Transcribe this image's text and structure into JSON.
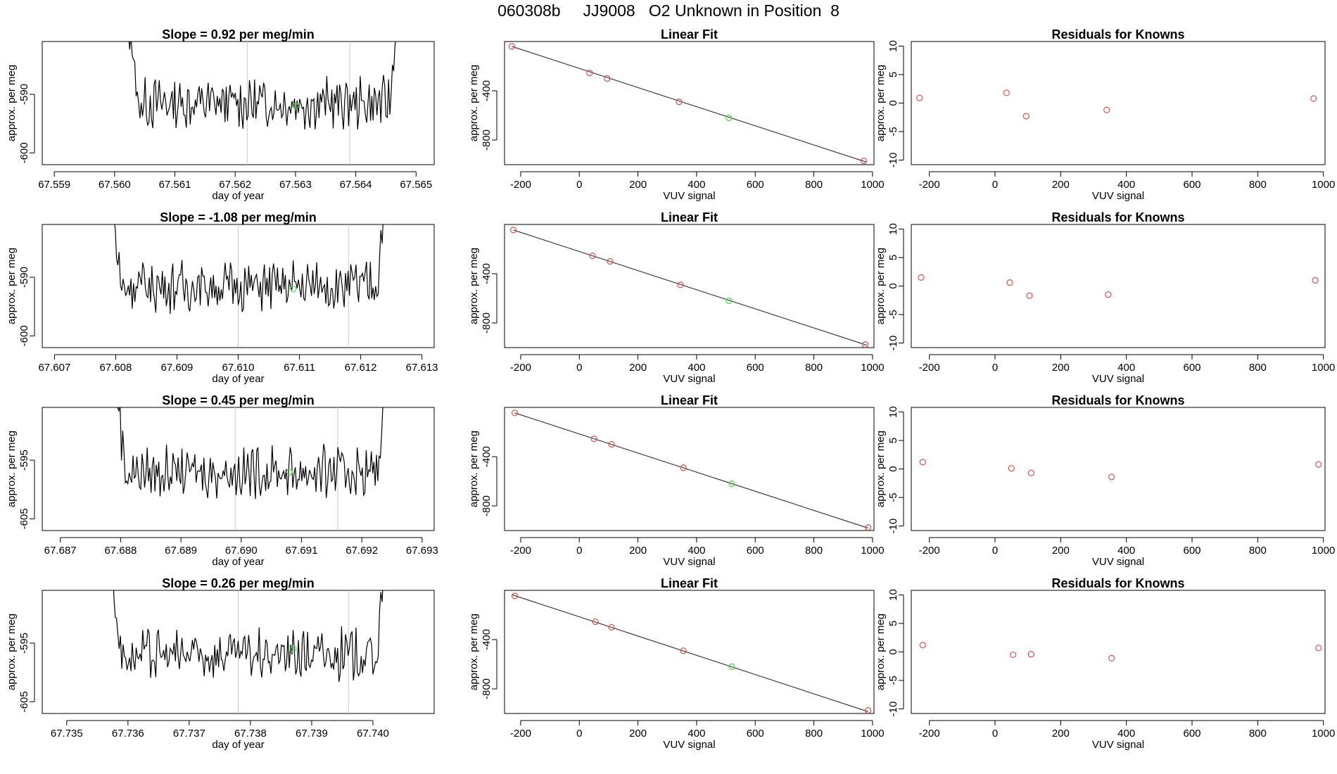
{
  "page_title": "060308b     JJ9008   O2 Unknown in Position  8",
  "colors": {
    "trace": "#000000",
    "marker_known": "#d9534f",
    "marker_unknown": "#4cd94c",
    "window_line": "#c8c8c8",
    "fit_line": "#404040",
    "frame": "#000000"
  },
  "rows": [
    {
      "trace_panel": {
        "title": "Slope =  0.92  per meg/min",
        "xlabel": "day of year",
        "ylabel": "approx. per meg",
        "x_ticks": [
          "67.559",
          "67.560",
          "67.561",
          "67.562",
          "67.563",
          "67.564",
          "67.565"
        ],
        "x_tick_values": [
          67.559,
          67.56,
          67.561,
          67.562,
          67.563,
          67.564,
          67.565
        ],
        "xlim": [
          67.5588,
          67.5653
        ],
        "y_ticks": [
          "-590",
          "-600"
        ],
        "y_tick_values": [
          -590,
          -600
        ],
        "ylim": [
          -602,
          -581
        ],
        "window_start": 67.5622,
        "window_end": 67.5639,
        "start": 67.5601,
        "end": 67.5648,
        "level": -591.5,
        "noise": 3.5,
        "highlight": {
          "x": 67.563,
          "y": -592
        }
      },
      "fit_panel": {
        "title": "Linear Fit",
        "xlabel": "VUV signal",
        "ylabel": "approx. per meg",
        "x_ticks": [
          "-200",
          "0",
          "200",
          "400",
          "600",
          "800",
          "1000"
        ],
        "x_tick_values": [
          -200,
          0,
          200,
          400,
          600,
          800,
          1000
        ],
        "xlim": [
          -255,
          1005
        ],
        "y_ticks": [
          "-400",
          "-800"
        ],
        "y_tick_values": [
          -400,
          -800
        ],
        "ylim": [
          -1000,
          0
        ],
        "known_points": [
          [
            -230,
            -40
          ],
          [
            35,
            -255
          ],
          [
            95,
            -300
          ],
          [
            340,
            -490
          ],
          [
            970,
            -970
          ]
        ],
        "unknown_point": [
          510,
          -620
        ],
        "fit_line": [
          [
            -230,
            -40
          ],
          [
            980,
            -980
          ]
        ]
      },
      "resid_panel": {
        "title": "Residuals for Knowns",
        "xlabel": "VUV signal",
        "ylabel": "approx. per meg",
        "x_ticks": [
          "-200",
          "0",
          "200",
          "400",
          "600",
          "800",
          "1000"
        ],
        "x_tick_values": [
          -200,
          0,
          200,
          400,
          600,
          800,
          1000
        ],
        "xlim": [
          -255,
          1005
        ],
        "y_ticks": [
          "10",
          "5",
          "0",
          "-5",
          "-10"
        ],
        "y_tick_values": [
          10,
          5,
          0,
          -5,
          -10
        ],
        "ylim": [
          -10.8,
          10.8
        ],
        "points": [
          [
            -230,
            0.9
          ],
          [
            35,
            1.8
          ],
          [
            95,
            -2.3
          ],
          [
            340,
            -1.2
          ],
          [
            970,
            0.8
          ]
        ]
      }
    },
    {
      "trace_panel": {
        "title": "Slope =  -1.08  per meg/min",
        "xlabel": "day of year",
        "ylabel": "approx. per meg",
        "x_ticks": [
          "67.607",
          "67.608",
          "67.609",
          "67.610",
          "67.611",
          "67.612",
          "67.613"
        ],
        "x_tick_values": [
          67.607,
          67.608,
          67.609,
          67.61,
          67.611,
          67.612,
          67.613
        ],
        "xlim": [
          67.6068,
          67.6132
        ],
        "y_ticks": [
          "-590",
          "-600"
        ],
        "y_tick_values": [
          -590,
          -600
        ],
        "ylim": [
          -602,
          -581
        ],
        "window_start": 67.61,
        "window_end": 67.6118,
        "start": 67.6078,
        "end": 67.6125,
        "level": -591.5,
        "noise": 3.5,
        "highlight": {
          "x": 67.6109,
          "y": -592
        }
      },
      "fit_panel": {
        "title": "Linear Fit",
        "xlabel": "VUV signal",
        "ylabel": "approx. per meg",
        "x_ticks": [
          "-200",
          "0",
          "200",
          "400",
          "600",
          "800",
          "1000"
        ],
        "x_tick_values": [
          -200,
          0,
          200,
          400,
          600,
          800,
          1000
        ],
        "xlim": [
          -255,
          1005
        ],
        "y_ticks": [
          "-400",
          "-800"
        ],
        "y_tick_values": [
          -400,
          -800
        ],
        "ylim": [
          -1000,
          0
        ],
        "known_points": [
          [
            -225,
            -45
          ],
          [
            45,
            -255
          ],
          [
            105,
            -300
          ],
          [
            345,
            -490
          ],
          [
            975,
            -975
          ]
        ],
        "unknown_point": [
          510,
          -620
        ],
        "fit_line": [
          [
            -225,
            -45
          ],
          [
            980,
            -980
          ]
        ]
      },
      "resid_panel": {
        "title": "Residuals for Knowns",
        "xlabel": "VUV signal",
        "ylabel": "approx. per meg",
        "x_ticks": [
          "-200",
          "0",
          "200",
          "400",
          "600",
          "800",
          "1000"
        ],
        "x_tick_values": [
          -200,
          0,
          200,
          400,
          600,
          800,
          1000
        ],
        "xlim": [
          -255,
          1005
        ],
        "y_ticks": [
          "10",
          "5",
          "0",
          "-5",
          "-10"
        ],
        "y_tick_values": [
          10,
          5,
          0,
          -5,
          -10
        ],
        "ylim": [
          -10.8,
          10.8
        ],
        "points": [
          [
            -225,
            1.5
          ],
          [
            45,
            0.6
          ],
          [
            105,
            -1.7
          ],
          [
            345,
            -1.5
          ],
          [
            975,
            1.0
          ]
        ]
      }
    },
    {
      "trace_panel": {
        "title": "Slope =  0.45  per meg/min",
        "xlabel": "day of year",
        "ylabel": "approx. per meg",
        "x_ticks": [
          "67.687",
          "67.688",
          "67.689",
          "67.690",
          "67.691",
          "67.692",
          "67.693"
        ],
        "x_tick_values": [
          67.687,
          67.688,
          67.689,
          67.69,
          67.691,
          67.692,
          67.693
        ],
        "xlim": [
          67.6867,
          67.6932
        ],
        "y_ticks": [
          "-595",
          "-605"
        ],
        "y_tick_values": [
          -595,
          -605
        ],
        "ylim": [
          -607,
          -586
        ],
        "window_start": 67.6899,
        "window_end": 67.6916,
        "start": 67.6878,
        "end": 67.6925,
        "level": -597,
        "noise": 3.5,
        "highlight": {
          "x": 67.6908,
          "y": -597
        }
      },
      "fit_panel": {
        "title": "Linear Fit",
        "xlabel": "VUV signal",
        "ylabel": "approx. per meg",
        "x_ticks": [
          "-200",
          "0",
          "200",
          "400",
          "600",
          "800",
          "1000"
        ],
        "x_tick_values": [
          -200,
          0,
          200,
          400,
          600,
          800,
          1000
        ],
        "xlim": [
          -255,
          1005
        ],
        "y_ticks": [
          "-400",
          "-800"
        ],
        "y_tick_values": [
          -400,
          -800
        ],
        "ylim": [
          -1000,
          0
        ],
        "known_points": [
          [
            -220,
            -45
          ],
          [
            50,
            -255
          ],
          [
            110,
            -300
          ],
          [
            355,
            -490
          ],
          [
            985,
            -975
          ]
        ],
        "unknown_point": [
          520,
          -620
        ],
        "fit_line": [
          [
            -220,
            -45
          ],
          [
            985,
            -980
          ]
        ]
      },
      "resid_panel": {
        "title": "Residuals for Knowns",
        "xlabel": "VUV signal",
        "ylabel": "approx. per meg",
        "x_ticks": [
          "-200",
          "0",
          "200",
          "400",
          "600",
          "800",
          "1000"
        ],
        "x_tick_values": [
          -200,
          0,
          200,
          400,
          600,
          800,
          1000
        ],
        "xlim": [
          -255,
          1005
        ],
        "y_ticks": [
          "10",
          "5",
          "0",
          "-5",
          "-10"
        ],
        "y_tick_values": [
          10,
          5,
          0,
          -5,
          -10
        ],
        "ylim": [
          -10.8,
          10.8
        ],
        "points": [
          [
            -220,
            1.2
          ],
          [
            50,
            0.1
          ],
          [
            110,
            -0.7
          ],
          [
            355,
            -1.4
          ],
          [
            985,
            0.8
          ]
        ]
      }
    },
    {
      "trace_panel": {
        "title": "Slope =  0.26  per meg/min",
        "xlabel": "day of year",
        "ylabel": "approx. per meg",
        "x_ticks": [
          "67.735",
          "67.736",
          "67.737",
          "67.738",
          "67.739",
          "67.740"
        ],
        "x_tick_values": [
          67.735,
          67.736,
          67.737,
          67.738,
          67.739,
          67.74
        ],
        "xlim": [
          67.7346,
          67.741
        ],
        "y_ticks": [
          "-595",
          "-605"
        ],
        "y_tick_values": [
          -595,
          -605
        ],
        "ylim": [
          -607,
          -586
        ],
        "window_start": 67.7378,
        "window_end": 67.7396,
        "start": 67.7356,
        "end": 67.7403,
        "level": -597,
        "noise": 3.5,
        "highlight": {
          "x": 67.7387,
          "y": -596
        }
      },
      "fit_panel": {
        "title": "Linear Fit",
        "xlabel": "VUV signal",
        "ylabel": "approx. per meg",
        "x_ticks": [
          "-200",
          "0",
          "200",
          "400",
          "600",
          "800",
          "1000"
        ],
        "x_tick_values": [
          -200,
          0,
          200,
          400,
          600,
          800,
          1000
        ],
        "xlim": [
          -255,
          1005
        ],
        "y_ticks": [
          "-400",
          "-800"
        ],
        "y_tick_values": [
          -400,
          -800
        ],
        "ylim": [
          -1000,
          0
        ],
        "known_points": [
          [
            -220,
            -45
          ],
          [
            55,
            -255
          ],
          [
            110,
            -300
          ],
          [
            355,
            -490
          ],
          [
            985,
            -975
          ]
        ],
        "unknown_point": [
          520,
          -620
        ],
        "fit_line": [
          [
            -230,
            -35
          ],
          [
            985,
            -985
          ]
        ]
      },
      "resid_panel": {
        "title": "Residuals for Knowns",
        "xlabel": "VUV signal",
        "ylabel": "approx. per meg",
        "x_ticks": [
          "-200",
          "0",
          "200",
          "400",
          "600",
          "800",
          "1000"
        ],
        "x_tick_values": [
          -200,
          0,
          200,
          400,
          600,
          800,
          1000
        ],
        "xlim": [
          -255,
          1005
        ],
        "y_ticks": [
          "10",
          "5",
          "0",
          "-5",
          "-10"
        ],
        "y_tick_values": [
          10,
          5,
          0,
          -5,
          -10
        ],
        "ylim": [
          -10.8,
          10.8
        ],
        "points": [
          [
            -220,
            1.2
          ],
          [
            55,
            -0.5
          ],
          [
            110,
            -0.4
          ],
          [
            355,
            -1.1
          ],
          [
            985,
            0.7
          ]
        ]
      }
    }
  ],
  "chart_data": [
    {
      "type": "line",
      "title": "Slope =  0.92  per meg/min",
      "xlabel": "day of year",
      "ylabel": "approx. per meg",
      "xlim": [
        67.5588,
        67.5653
      ],
      "ylim": [
        -602,
        -581
      ],
      "x_ticks": [
        "67.559",
        "67.560",
        "67.561",
        "67.562",
        "67.563",
        "67.564",
        "67.565"
      ],
      "y_ticks": [
        "-590",
        "-600"
      ]
    },
    {
      "type": "scatter",
      "title": "Linear Fit",
      "xlabel": "VUV signal",
      "ylabel": "approx. per meg",
      "xlim": [
        -255,
        1005
      ],
      "ylim": [
        -1000,
        0
      ],
      "series": [
        {
          "values": [
            [
              -230,
              -40
            ],
            [
              35,
              -255
            ],
            [
              95,
              -300
            ],
            [
              340,
              -490
            ],
            [
              970,
              -970
            ]
          ]
        },
        {
          "values": [
            [
              510,
              -620
            ]
          ]
        }
      ]
    },
    {
      "type": "scatter",
      "title": "Residuals for Knowns",
      "xlabel": "VUV signal",
      "ylabel": "approx. per meg",
      "xlim": [
        -255,
        1005
      ],
      "ylim": [
        -10.8,
        10.8
      ],
      "series": [
        {
          "values": [
            [
              -230,
              0.9
            ],
            [
              35,
              1.8
            ],
            [
              95,
              -2.3
            ],
            [
              340,
              -1.2
            ],
            [
              970,
              0.8
            ]
          ]
        }
      ]
    },
    {
      "type": "line",
      "title": "Slope =  -1.08  per meg/min",
      "xlabel": "day of year",
      "ylabel": "approx. per meg",
      "xlim": [
        67.6068,
        67.6132
      ],
      "ylim": [
        -602,
        -581
      ]
    },
    {
      "type": "scatter",
      "title": "Linear Fit",
      "xlabel": "VUV signal",
      "ylabel": "approx. per meg",
      "series": [
        {
          "values": [
            [
              -225,
              -45
            ],
            [
              45,
              -255
            ],
            [
              105,
              -300
            ],
            [
              345,
              -490
            ],
            [
              975,
              -975
            ]
          ]
        },
        {
          "values": [
            [
              510,
              -620
            ]
          ]
        }
      ]
    },
    {
      "type": "scatter",
      "title": "Residuals for Knowns",
      "xlabel": "VUV signal",
      "ylabel": "approx. per meg",
      "series": [
        {
          "values": [
            [
              -225,
              1.5
            ],
            [
              45,
              0.6
            ],
            [
              105,
              -1.7
            ],
            [
              345,
              -1.5
            ],
            [
              975,
              1.0
            ]
          ]
        }
      ]
    },
    {
      "type": "line",
      "title": "Slope =  0.45  per meg/min",
      "xlabel": "day of year",
      "ylabel": "approx. per meg",
      "xlim": [
        67.6867,
        67.6932
      ],
      "ylim": [
        -607,
        -586
      ]
    },
    {
      "type": "scatter",
      "title": "Linear Fit",
      "xlabel": "VUV signal",
      "ylabel": "approx. per meg",
      "series": [
        {
          "values": [
            [
              -220,
              -45
            ],
            [
              50,
              -255
            ],
            [
              110,
              -300
            ],
            [
              355,
              -490
            ],
            [
              985,
              -975
            ]
          ]
        },
        {
          "values": [
            [
              520,
              -620
            ]
          ]
        }
      ]
    },
    {
      "type": "scatter",
      "title": "Residuals for Knowns",
      "xlabel": "VUV signal",
      "ylabel": "approx. per meg",
      "series": [
        {
          "values": [
            [
              -220,
              1.2
            ],
            [
              50,
              0.1
            ],
            [
              110,
              -0.7
            ],
            [
              355,
              -1.4
            ],
            [
              985,
              0.8
            ]
          ]
        }
      ]
    },
    {
      "type": "line",
      "title": "Slope =  0.26  per meg/min",
      "xlabel": "day of year",
      "ylabel": "approx. per meg",
      "xlim": [
        67.7346,
        67.741
      ],
      "ylim": [
        -607,
        -586
      ]
    },
    {
      "type": "scatter",
      "title": "Linear Fit",
      "xlabel": "VUV signal",
      "ylabel": "approx. per meg",
      "series": [
        {
          "values": [
            [
              -220,
              -45
            ],
            [
              55,
              -255
            ],
            [
              110,
              -300
            ],
            [
              355,
              -490
            ],
            [
              985,
              -975
            ]
          ]
        },
        {
          "values": [
            [
              520,
              -620
            ]
          ]
        }
      ]
    },
    {
      "type": "scatter",
      "title": "Residuals for Knowns",
      "xlabel": "VUV signal",
      "ylabel": "approx. per meg",
      "series": [
        {
          "values": [
            [
              -220,
              1.2
            ],
            [
              55,
              -0.5
            ],
            [
              110,
              -0.4
            ],
            [
              355,
              -1.1
            ],
            [
              985,
              0.7
            ]
          ]
        }
      ]
    }
  ]
}
